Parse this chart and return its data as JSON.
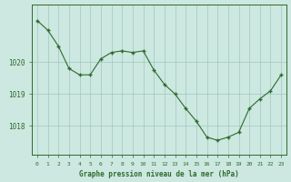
{
  "x": [
    0,
    1,
    2,
    3,
    4,
    5,
    6,
    7,
    8,
    9,
    10,
    11,
    12,
    13,
    14,
    15,
    16,
    17,
    18,
    19,
    20,
    21,
    22,
    23
  ],
  "y": [
    1021.3,
    1021.0,
    1020.5,
    1019.8,
    1019.6,
    1019.6,
    1020.1,
    1020.3,
    1020.35,
    1020.3,
    1020.35,
    1019.75,
    1019.3,
    1019.0,
    1018.55,
    1018.15,
    1017.65,
    1017.55,
    1017.65,
    1017.8,
    1018.55,
    1018.85,
    1019.1,
    1019.6
  ],
  "line_color": "#2d6a2d",
  "marker_color": "#2d6a2d",
  "bg_color": "#cce8e0",
  "grid_color": "#a0c8be",
  "axis_color": "#2d6a2d",
  "tick_color": "#2d6a2d",
  "label_color": "#2d6a2d",
  "xlabel": "Graphe pression niveau de la mer (hPa)",
  "yticks": [
    1018,
    1019,
    1020
  ],
  "ylim": [
    1017.1,
    1021.8
  ],
  "xlim": [
    -0.5,
    23.5
  ],
  "xticks": [
    0,
    1,
    2,
    3,
    4,
    5,
    6,
    7,
    8,
    9,
    10,
    11,
    12,
    13,
    14,
    15,
    16,
    17,
    18,
    19,
    20,
    21,
    22,
    23
  ]
}
